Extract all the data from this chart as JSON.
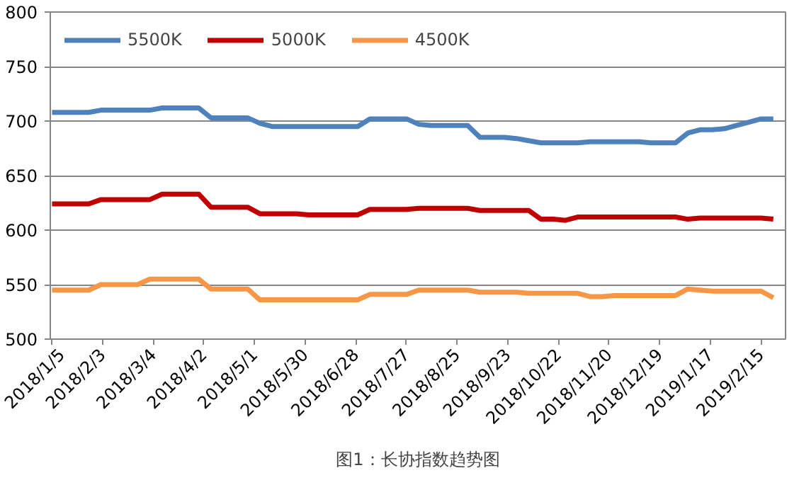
{
  "chart_data": {
    "type": "line",
    "title": "图1：长协指数趋势图",
    "x": [
      "2018-01-05",
      "2018-01-12",
      "2018-01-19",
      "2018-01-26",
      "2018-02-02",
      "2018-02-09",
      "2018-02-16",
      "2018-02-23",
      "2018-03-02",
      "2018-03-09",
      "2018-03-16",
      "2018-03-23",
      "2018-03-30",
      "2018-04-06",
      "2018-04-13",
      "2018-04-20",
      "2018-04-27",
      "2018-05-04",
      "2018-05-11",
      "2018-05-18",
      "2018-05-25",
      "2018-06-01",
      "2018-06-08",
      "2018-06-15",
      "2018-06-22",
      "2018-06-29",
      "2018-07-06",
      "2018-07-13",
      "2018-07-20",
      "2018-07-27",
      "2018-08-03",
      "2018-08-10",
      "2018-08-17",
      "2018-08-24",
      "2018-08-31",
      "2018-09-07",
      "2018-09-14",
      "2018-09-21",
      "2018-09-28",
      "2018-10-05",
      "2018-10-12",
      "2018-10-19",
      "2018-10-26",
      "2018-11-02",
      "2018-11-09",
      "2018-11-16",
      "2018-11-23",
      "2018-11-30",
      "2018-12-07",
      "2018-12-14",
      "2018-12-21",
      "2018-12-28",
      "2019-01-04",
      "2019-01-11",
      "2019-01-18",
      "2019-01-25",
      "2019-02-01",
      "2019-02-08",
      "2019-02-15",
      "2019-02-22"
    ],
    "series": [
      {
        "name": "5500K",
        "color": "#4f81bd",
        "values": [
          708,
          708,
          708,
          708,
          710,
          710,
          710,
          710,
          710,
          712,
          712,
          712,
          712,
          703,
          703,
          703,
          703,
          698,
          695,
          695,
          695,
          695,
          695,
          695,
          695,
          695,
          702,
          702,
          702,
          702,
          697,
          696,
          696,
          696,
          696,
          685,
          685,
          685,
          684,
          682,
          680,
          680,
          680,
          680,
          681,
          681,
          681,
          681,
          681,
          680,
          680,
          680,
          689,
          692,
          692,
          693,
          696,
          699,
          702,
          702
        ]
      },
      {
        "name": "5000K",
        "color": "#c00000",
        "values": [
          624,
          624,
          624,
          624,
          628,
          628,
          628,
          628,
          628,
          633,
          633,
          633,
          633,
          621,
          621,
          621,
          621,
          615,
          615,
          615,
          615,
          614,
          614,
          614,
          614,
          614,
          619,
          619,
          619,
          619,
          620,
          620,
          620,
          620,
          620,
          618,
          618,
          618,
          618,
          618,
          610,
          610,
          609,
          612,
          612,
          612,
          612,
          612,
          612,
          612,
          612,
          612,
          610,
          611,
          611,
          611,
          611,
          611,
          611,
          610
        ]
      },
      {
        "name": "4500K",
        "color": "#f79646",
        "values": [
          545,
          545,
          545,
          545,
          550,
          550,
          550,
          550,
          555,
          555,
          555,
          555,
          555,
          546,
          546,
          546,
          546,
          536,
          536,
          536,
          536,
          536,
          536,
          536,
          536,
          536,
          541,
          541,
          541,
          541,
          545,
          545,
          545,
          545,
          545,
          543,
          543,
          543,
          543,
          542,
          542,
          542,
          542,
          542,
          539,
          539,
          540,
          540,
          540,
          540,
          540,
          540,
          546,
          545,
          544,
          544,
          544,
          544,
          544,
          538
        ]
      }
    ],
    "xlim": [
      "2018-01-04",
      "2019-03-01"
    ],
    "xticks": [
      {
        "value": "2018-01-05",
        "label": "2018/1/5"
      },
      {
        "value": "2018-02-03",
        "label": "2018/2/3"
      },
      {
        "value": "2018-03-04",
        "label": "2018/3/4"
      },
      {
        "value": "2018-04-02",
        "label": "2018/4/2"
      },
      {
        "value": "2018-05-01",
        "label": "2018/5/1"
      },
      {
        "value": "2018-05-30",
        "label": "2018/5/30"
      },
      {
        "value": "2018-06-28",
        "label": "2018/6/28"
      },
      {
        "value": "2018-07-27",
        "label": "2018/7/27"
      },
      {
        "value": "2018-08-25",
        "label": "2018/8/25"
      },
      {
        "value": "2018-09-23",
        "label": "2018/9/23"
      },
      {
        "value": "2018-10-22",
        "label": "2018/10/22"
      },
      {
        "value": "2018-11-20",
        "label": "2018/11/20"
      },
      {
        "value": "2018-12-19",
        "label": "2018/12/19"
      },
      {
        "value": "2019-01-17",
        "label": "2019/1/17"
      },
      {
        "value": "2019-02-15",
        "label": "2019/2/15"
      }
    ],
    "ylim": [
      500,
      800
    ],
    "yticks": [
      500,
      550,
      600,
      650,
      700,
      750,
      800
    ],
    "grid": "y",
    "legend": "top left",
    "marker": "none",
    "line_style": "solid"
  }
}
